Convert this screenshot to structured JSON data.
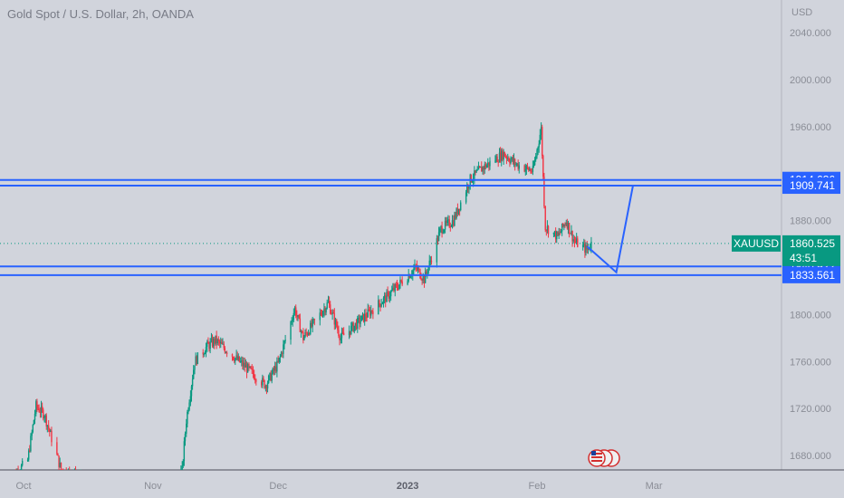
{
  "header": {
    "title": "Gold Spot / U.S. Dollar, 2h, OANDA",
    "currency": "USD"
  },
  "chart_data": {
    "type": "candlestick",
    "symbol": "XAUUSD",
    "y_ticks": [
      2040,
      2000,
      1960,
      1880,
      1800,
      1760,
      1720,
      1680
    ],
    "y_tick_labels": [
      "2040.000",
      "2000.000",
      "1960.000",
      "1880.000",
      "1800.000",
      "1760.000",
      "1720.000",
      "1680.000"
    ],
    "ylim": [
      1667,
      2045
    ],
    "x_ticks": [
      {
        "label": "Oct",
        "date": "2022-10-01"
      },
      {
        "label": "Nov",
        "date": "2022-11-01"
      },
      {
        "label": "Dec",
        "date": "2022-12-01"
      },
      {
        "label": "2023",
        "date": "2023-01-01",
        "bold": true
      },
      {
        "label": "Feb",
        "date": "2023-02-01"
      },
      {
        "label": "Mar",
        "date": "2023-03-01"
      }
    ],
    "price_path": [
      {
        "date": "2022-09-28",
        "price": 1660
      },
      {
        "date": "2022-10-02",
        "price": 1676
      },
      {
        "date": "2022-10-04",
        "price": 1722
      },
      {
        "date": "2022-10-06",
        "price": 1715
      },
      {
        "date": "2022-10-10",
        "price": 1668
      },
      {
        "date": "2022-10-21",
        "price": 1650
      },
      {
        "date": "2022-11-02",
        "price": 1640
      },
      {
        "date": "2022-11-08",
        "price": 1667
      },
      {
        "date": "2022-11-09",
        "price": 1710
      },
      {
        "date": "2022-11-11",
        "price": 1760
      },
      {
        "date": "2022-11-14",
        "price": 1773
      },
      {
        "date": "2022-11-16",
        "price": 1778
      },
      {
        "date": "2022-11-28",
        "price": 1740
      },
      {
        "date": "2022-12-01",
        "price": 1758
      },
      {
        "date": "2022-12-05",
        "price": 1805
      },
      {
        "date": "2022-12-07",
        "price": 1780
      },
      {
        "date": "2022-12-13",
        "price": 1810
      },
      {
        "date": "2022-12-16",
        "price": 1780
      },
      {
        "date": "2022-12-27",
        "price": 1815
      },
      {
        "date": "2023-01-03",
        "price": 1840
      },
      {
        "date": "2023-01-05",
        "price": 1830
      },
      {
        "date": "2023-01-09",
        "price": 1873
      },
      {
        "date": "2023-01-12",
        "price": 1880
      },
      {
        "date": "2023-01-16",
        "price": 1915
      },
      {
        "date": "2023-01-19",
        "price": 1925
      },
      {
        "date": "2023-01-24",
        "price": 1937
      },
      {
        "date": "2023-01-27",
        "price": 1928
      },
      {
        "date": "2023-01-31",
        "price": 1922
      },
      {
        "date": "2023-02-02",
        "price": 1958
      },
      {
        "date": "2023-02-03",
        "price": 1875
      },
      {
        "date": "2023-02-06",
        "price": 1866
      },
      {
        "date": "2023-02-08",
        "price": 1880
      },
      {
        "date": "2023-02-10",
        "price": 1862
      },
      {
        "date": "2023-02-13",
        "price": 1855
      },
      {
        "date": "2023-02-14",
        "price": 1860.525
      }
    ],
    "colors": {
      "up": "#089981",
      "down": "#f23645",
      "drawing": "#2962ff",
      "axis_tag": "#2962ff",
      "price_tag": "#089981"
    },
    "levels": [
      {
        "label": "1914.636",
        "price": 1914.636
      },
      {
        "label": "1909.741",
        "price": 1909.741
      },
      {
        "label": "1840.922",
        "price": 1840.922
      },
      {
        "label": "1833.561",
        "price": 1833.561
      }
    ],
    "current_price": {
      "symbol": "XAUUSD",
      "price_label": "1860.525",
      "price": 1860.525,
      "countdown": "43:51"
    },
    "projection": [
      {
        "date": "2023-02-13",
        "price": 1858
      },
      {
        "date": "2023-02-20",
        "price": 1836
      },
      {
        "date": "2023-02-24",
        "price": 1910
      }
    ]
  }
}
